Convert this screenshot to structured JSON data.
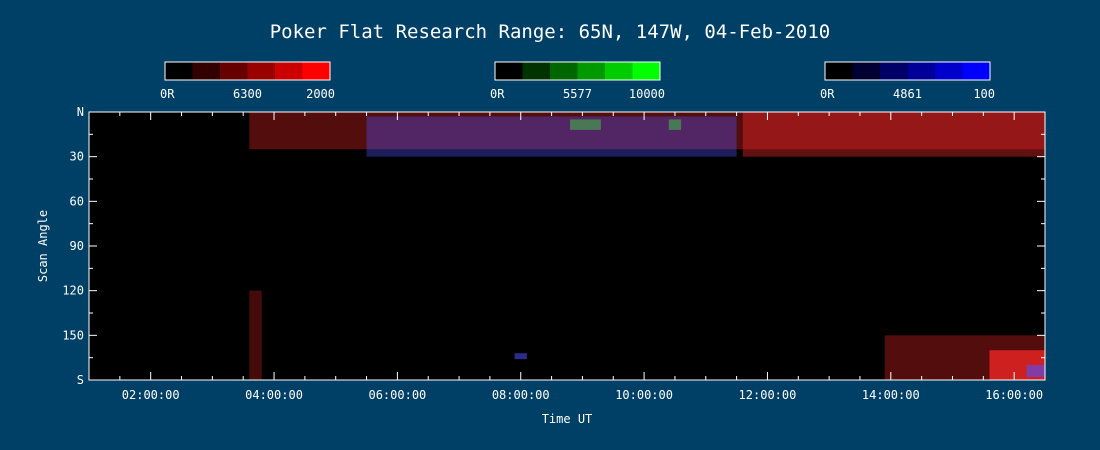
{
  "chart_data": {
    "type": "heatmap",
    "title": "Poker Flat Research Range: 65N, 147W, 04-Feb-2010",
    "xlabel": "Time UT",
    "ylabel": "Scan Angle",
    "x_range_hours": [
      1.0,
      16.5
    ],
    "x_ticks": [
      {
        "label": "02:00:00",
        "hour": 2
      },
      {
        "label": "04:00:00",
        "hour": 4
      },
      {
        "label": "06:00:00",
        "hour": 6
      },
      {
        "label": "08:00:00",
        "hour": 8
      },
      {
        "label": "10:00:00",
        "hour": 10
      },
      {
        "label": "12:00:00",
        "hour": 12
      },
      {
        "label": "14:00:00",
        "hour": 14
      },
      {
        "label": "16:00:00",
        "hour": 16
      }
    ],
    "y_range": [
      0,
      180
    ],
    "y_ticks": [
      {
        "label": "N",
        "value": 0
      },
      {
        "label": "30",
        "value": 30
      },
      {
        "label": "60",
        "value": 60
      },
      {
        "label": "90",
        "value": 90
      },
      {
        "label": "120",
        "value": 120
      },
      {
        "label": "150",
        "value": 150
      },
      {
        "label": "S",
        "value": 180
      }
    ],
    "colorbars": [
      {
        "name": "6300",
        "min_label": "0R",
        "max_label": "2000",
        "colors": [
          "#000000",
          "#330000",
          "#660000",
          "#990000",
          "#cc0000",
          "#ff0000"
        ]
      },
      {
        "name": "5577",
        "min_label": "0R",
        "max_label": "10000",
        "colors": [
          "#000000",
          "#003300",
          "#006600",
          "#009900",
          "#00cc00",
          "#00ff00"
        ]
      },
      {
        "name": "4861",
        "min_label": "0R",
        "max_label": "100",
        "colors": [
          "#000000",
          "#000033",
          "#000066",
          "#000099",
          "#0000cc",
          "#0000ff"
        ]
      }
    ],
    "features": [
      {
        "emission": "6300",
        "t0": 3.6,
        "t1": 16.5,
        "a0": 0,
        "a1": 25,
        "level": 0.25
      },
      {
        "emission": "4861",
        "t0": 5.5,
        "t1": 11.5,
        "a0": 3,
        "a1": 30,
        "level": 0.3
      },
      {
        "emission": "6300",
        "t0": 11.6,
        "t1": 16.5,
        "a0": 0,
        "a1": 30,
        "level": 0.35
      },
      {
        "emission": "5577",
        "t0": 8.8,
        "t1": 9.3,
        "a0": 5,
        "a1": 12,
        "level": 0.35
      },
      {
        "emission": "5577",
        "t0": 10.4,
        "t1": 10.6,
        "a0": 5,
        "a1": 12,
        "level": 0.35
      },
      {
        "emission": "6300",
        "t0": 3.6,
        "t1": 3.8,
        "a0": 120,
        "a1": 180,
        "level": 0.15
      },
      {
        "emission": "6300",
        "t0": 13.9,
        "t1": 16.5,
        "a0": 150,
        "a1": 180,
        "level": 0.25
      },
      {
        "emission": "6300",
        "t0": 15.6,
        "t1": 16.5,
        "a0": 160,
        "a1": 180,
        "level": 0.9
      },
      {
        "emission": "4861",
        "t0": 16.2,
        "t1": 16.5,
        "a0": 170,
        "a1": 178,
        "level": 0.7
      },
      {
        "emission": "4861",
        "t0": 7.9,
        "t1": 8.1,
        "a0": 162,
        "a1": 166,
        "level": 0.6
      }
    ]
  }
}
